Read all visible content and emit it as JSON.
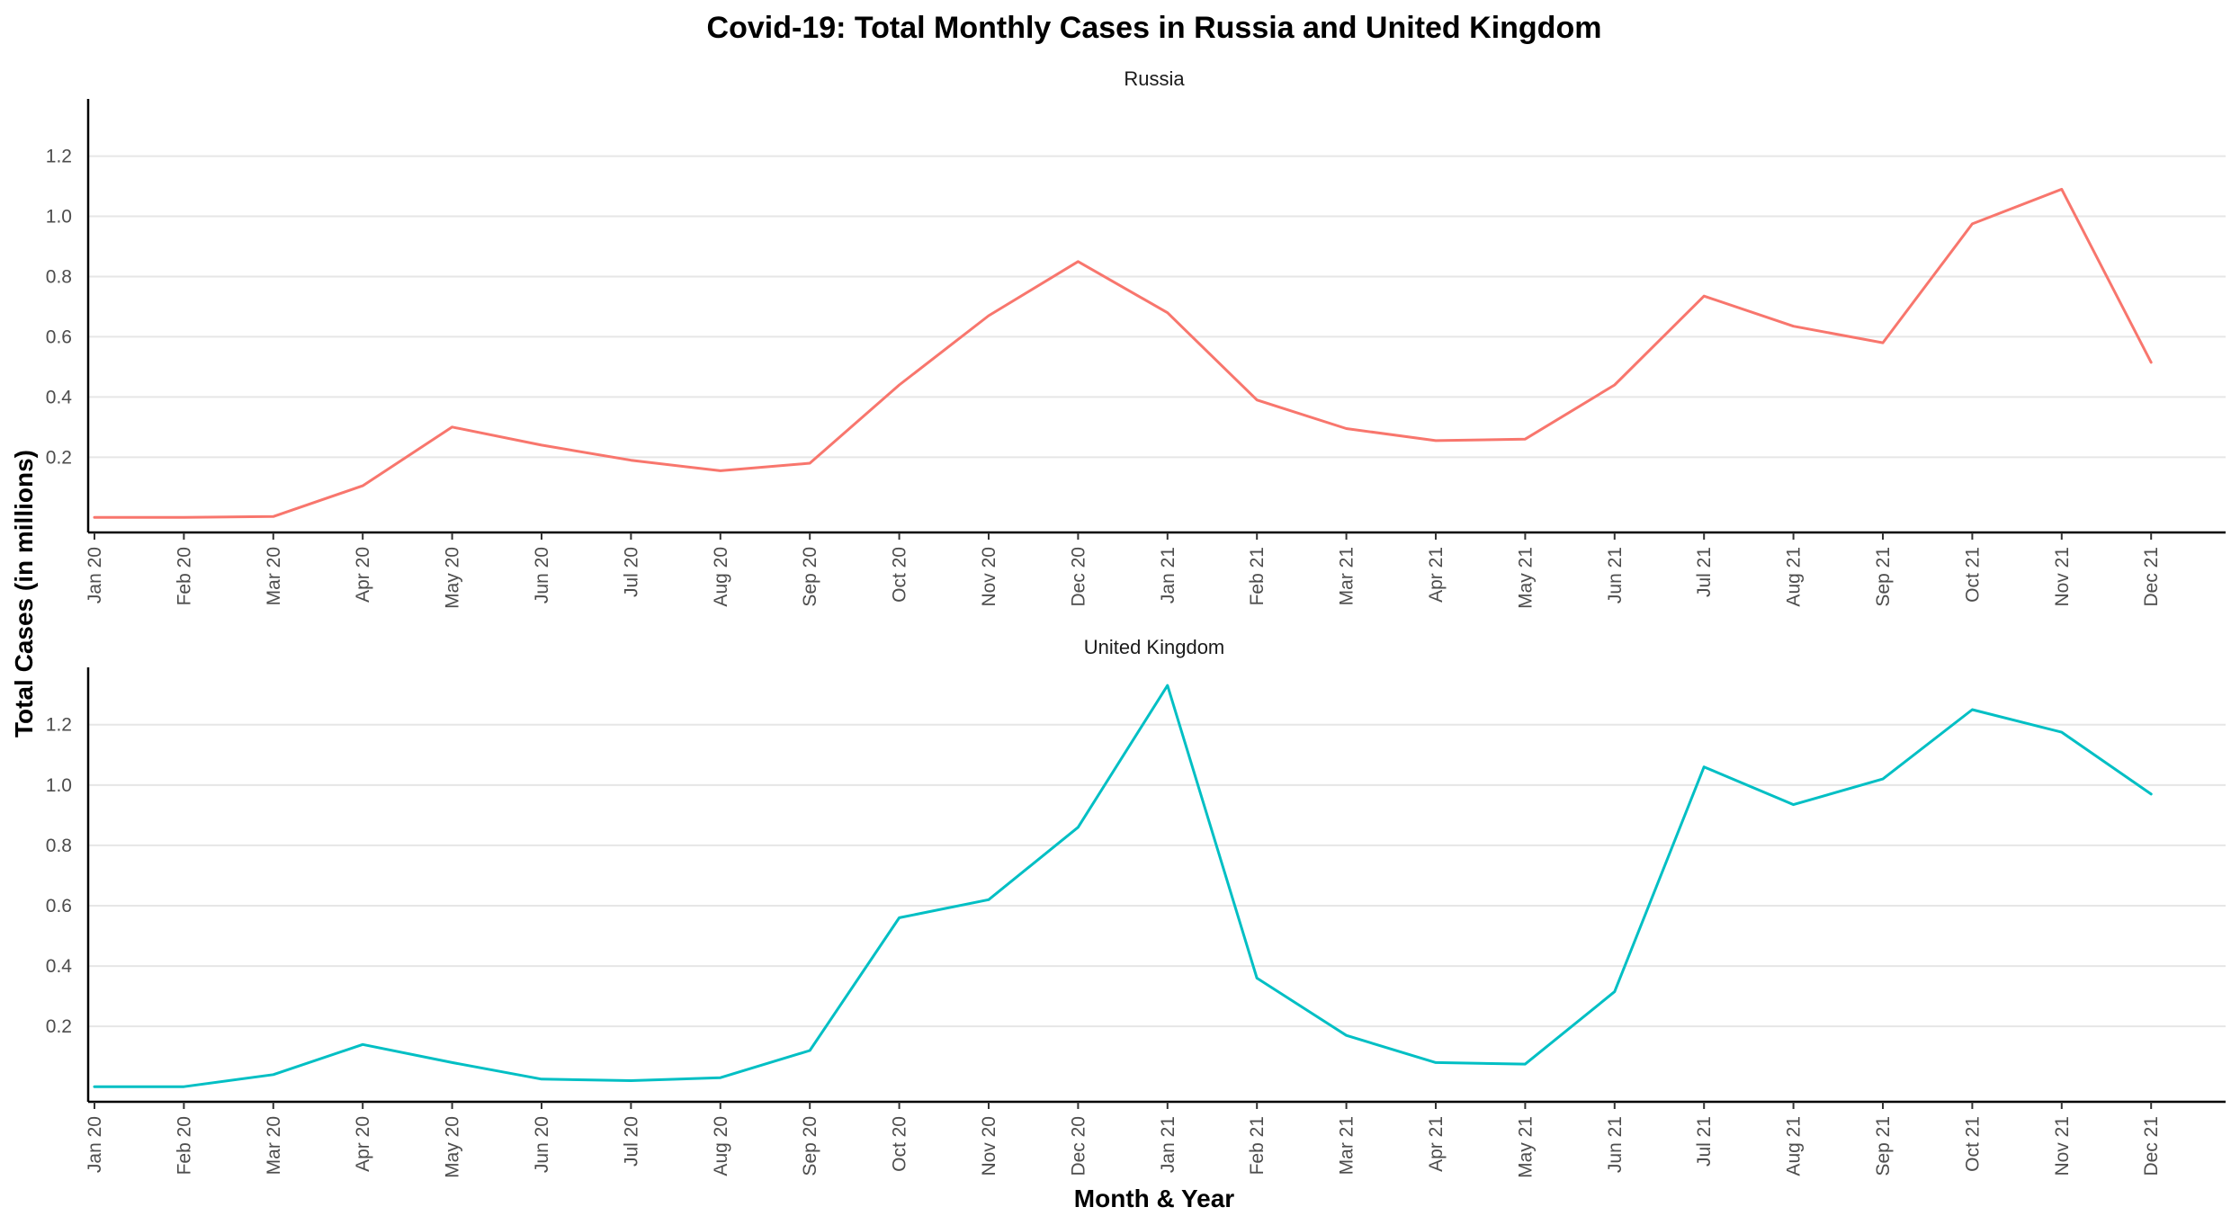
{
  "chart_data": {
    "type": "line",
    "title": "Covid-19: Total Monthly Cases in Russia and United Kingdom",
    "xlabel": "Month & Year",
    "ylabel": "Total Cases (in millions)",
    "categories": [
      "Jan 20",
      "Feb 20",
      "Mar 20",
      "Apr 20",
      "May 20",
      "Jun 20",
      "Jul 20",
      "Aug 20",
      "Sep 20",
      "Oct 20",
      "Nov 20",
      "Dec 20",
      "Jan 21",
      "Feb 21",
      "Mar 21",
      "Apr 21",
      "May 21",
      "Jun 21",
      "Jul 21",
      "Aug 21",
      "Sep 21",
      "Oct 21",
      "Nov 21",
      "Dec 21"
    ],
    "y_ticks": [
      "0.2",
      "0.4",
      "0.6",
      "0.8",
      "1.0",
      "1.2"
    ],
    "ylim": [
      -0.05,
      1.39
    ],
    "grid": true,
    "legend": "none",
    "facets": [
      {
        "label": "Russia",
        "color": "#F8766D",
        "values": [
          0.0,
          0.0,
          0.003,
          0.105,
          0.3,
          0.24,
          0.19,
          0.155,
          0.18,
          0.44,
          0.67,
          0.85,
          0.68,
          0.39,
          0.295,
          0.255,
          0.26,
          0.44,
          0.735,
          0.635,
          0.58,
          0.975,
          1.09,
          0.515
        ]
      },
      {
        "label": "United Kingdom",
        "color": "#00BFC4",
        "values": [
          0.0,
          0.0,
          0.04,
          0.14,
          0.08,
          0.025,
          0.02,
          0.03,
          0.12,
          0.56,
          0.62,
          0.86,
          1.33,
          0.36,
          0.17,
          0.08,
          0.075,
          0.315,
          1.06,
          0.935,
          1.02,
          1.25,
          1.175,
          0.97
        ]
      }
    ]
  }
}
